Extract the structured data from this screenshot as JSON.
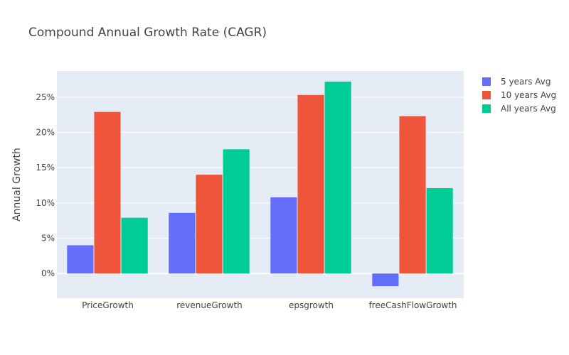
{
  "chart_data": {
    "type": "bar",
    "title": "Compound Annual Growth Rate (CAGR)",
    "xlabel": "",
    "ylabel": "Annual Growth",
    "categories": [
      "PriceGrowth",
      "revenueGrowth",
      "epsgrowth",
      "freeCashFlowGrowth"
    ],
    "series": [
      {
        "name": "5 years Avg",
        "color": "#636efa",
        "values": [
          0.04,
          0.086,
          0.108,
          -0.018
        ]
      },
      {
        "name": "10 years Avg",
        "color": "#EF553B",
        "values": [
          0.229,
          0.14,
          0.253,
          0.223
        ]
      },
      {
        "name": "All years Avg",
        "color": "#00cc96",
        "values": [
          0.079,
          0.176,
          0.272,
          0.121
        ]
      }
    ],
    "ylim": [
      -0.035,
      0.287
    ],
    "yticks": [
      0,
      0.05,
      0.1,
      0.15,
      0.2,
      0.25
    ],
    "ytick_labels": [
      "0%",
      "5%",
      "10%",
      "15%",
      "20%",
      "25%"
    ],
    "grid": true,
    "legend_position": "top-right",
    "plot_background": "#e5ecf6",
    "grid_color": "#ffffff"
  }
}
